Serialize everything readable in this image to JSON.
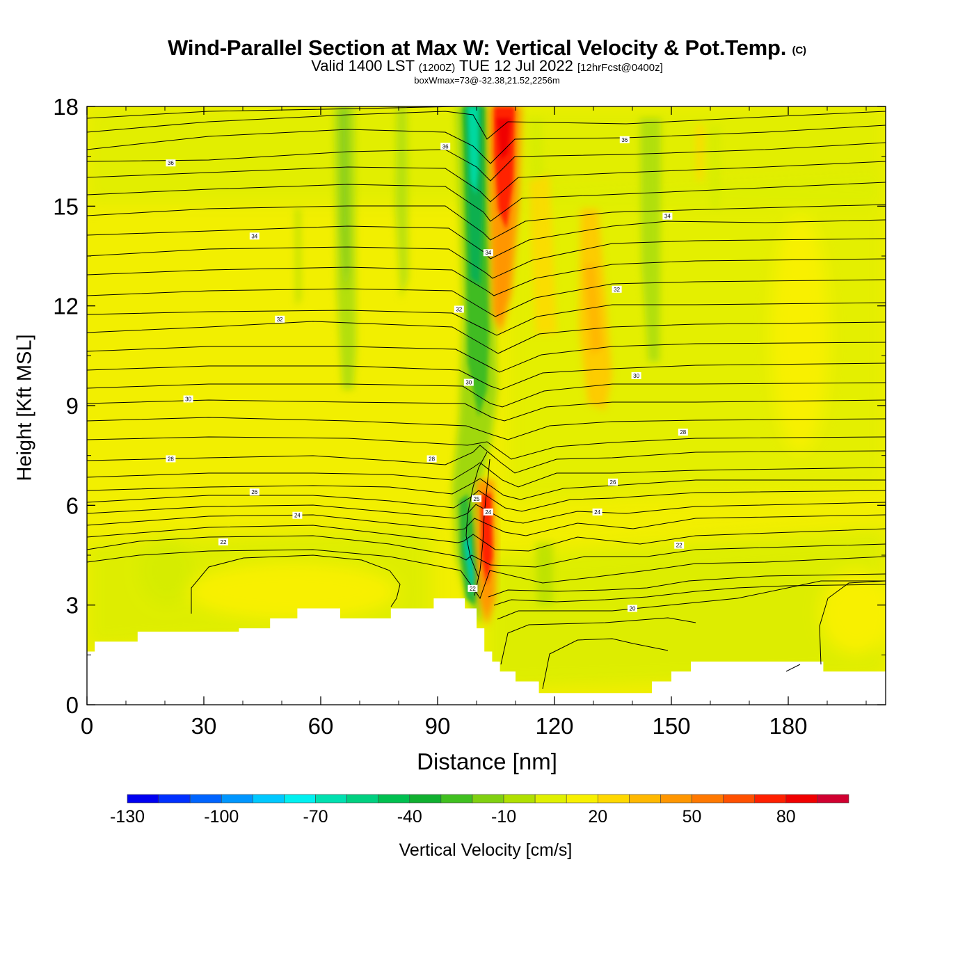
{
  "title": {
    "main": "Wind-Parallel Section at Max W: Vertical Velocity & Pot.Temp.",
    "copyright": "(C)",
    "valid_prefix": "Valid 1400 LST",
    "valid_z": "(1200Z)",
    "valid_date": "TUE 12 Jul 2022",
    "forecast": "[12hrFcst@0400z]",
    "box_info": "boxWmax=73@-32.38,21.52,2256m"
  },
  "chart_data": {
    "type": "heatmap",
    "xlabel": "Distance [nm]",
    "ylabel": "Height [Kft MSL]",
    "xlim": [
      0,
      205
    ],
    "ylim": [
      0,
      18
    ],
    "x_ticks": [
      0,
      30,
      60,
      90,
      120,
      150,
      180
    ],
    "y_ticks": [
      0,
      3,
      6,
      9,
      12,
      15,
      18
    ],
    "colorbar": {
      "title": "Vertical Velocity [cm/s]",
      "levels": [
        -130,
        -120,
        -110,
        -100,
        -90,
        -80,
        -70,
        -60,
        -50,
        -40,
        -30,
        -20,
        -10,
        0,
        10,
        20,
        30,
        40,
        50,
        60,
        70,
        80,
        90,
        100
      ],
      "labels": [
        -130,
        -100,
        -70,
        -40,
        -10,
        20,
        50,
        80
      ],
      "colors": [
        "#0000f0",
        "#0030ff",
        "#0064ff",
        "#0096ff",
        "#00c8ff",
        "#00f0f0",
        "#00e0b0",
        "#00d080",
        "#00c050",
        "#10b030",
        "#40c020",
        "#80d010",
        "#b0e000",
        "#e0f000",
        "#f8f000",
        "#ffd800",
        "#ffb800",
        "#ff9600",
        "#ff7800",
        "#ff5000",
        "#ff2000",
        "#f00000",
        "#d00030"
      ]
    },
    "velocity_features": [
      {
        "kind": "downdraft",
        "x_start": 97,
        "x_end": 101,
        "z_bottom": 2.3,
        "z_top": 18,
        "value": -70
      },
      {
        "kind": "updraft",
        "x_start": 104,
        "x_end": 109,
        "z_bottom": 7.5,
        "z_top": 18,
        "value": 80
      },
      {
        "kind": "updraft",
        "x_start": 100,
        "x_end": 104,
        "z_bottom": 2.5,
        "z_top": 7,
        "value": 80
      },
      {
        "kind": "downdraft",
        "x_start": 64,
        "x_end": 70,
        "z_bottom": 10,
        "z_top": 18,
        "value": -30
      },
      {
        "kind": "downdraft",
        "x_start": 144,
        "x_end": 148,
        "z_bottom": 10.5,
        "z_top": 17.5,
        "value": -25
      },
      {
        "kind": "updraft",
        "x_start": 124,
        "x_end": 136,
        "z_bottom": 9,
        "z_top": 16,
        "value": 25
      }
    ],
    "theta_contours": {
      "units": "C",
      "interval": 1,
      "labeled_values": [
        20,
        22,
        24,
        26,
        28,
        30,
        32,
        34,
        36
      ],
      "label_positions": [
        {
          "value": 36,
          "x": 21.5,
          "z": 16.3
        },
        {
          "value": 36,
          "x": 92,
          "z": 16.8
        },
        {
          "value": 36,
          "x": 138,
          "z": 17.0
        },
        {
          "value": 34,
          "x": 43,
          "z": 14.1
        },
        {
          "value": 34,
          "x": 103,
          "z": 13.6
        },
        {
          "value": 34,
          "x": 149,
          "z": 14.7
        },
        {
          "value": 32,
          "x": 49.5,
          "z": 11.6
        },
        {
          "value": 32,
          "x": 95.5,
          "z": 11.9
        },
        {
          "value": 32,
          "x": 136,
          "z": 12.5
        },
        {
          "value": 30,
          "x": 26,
          "z": 9.2
        },
        {
          "value": 30,
          "x": 98,
          "z": 9.7
        },
        {
          "value": 30,
          "x": 141,
          "z": 9.9
        },
        {
          "value": 28,
          "x": 21.5,
          "z": 7.4
        },
        {
          "value": 28,
          "x": 88.5,
          "z": 7.4
        },
        {
          "value": 28,
          "x": 153,
          "z": 8.2
        },
        {
          "value": 26,
          "x": 43,
          "z": 6.4
        },
        {
          "value": 26,
          "x": 135,
          "z": 6.7
        },
        {
          "value": 25,
          "x": 100,
          "z": 6.2
        },
        {
          "value": 24,
          "x": 103,
          "z": 5.8
        },
        {
          "value": 24,
          "x": 54,
          "z": 5.7
        },
        {
          "value": 24,
          "x": 131,
          "z": 5.8
        },
        {
          "value": 22,
          "x": 35,
          "z": 4.9
        },
        {
          "value": 22,
          "x": 152,
          "z": 4.8
        },
        {
          "value": 22,
          "x": 99,
          "z": 3.5
        },
        {
          "value": 20,
          "x": 140,
          "z": 2.9
        }
      ]
    },
    "terrain": [
      {
        "x": 0,
        "z": 1.6
      },
      {
        "x": 2,
        "z": 1.9
      },
      {
        "x": 13,
        "z": 2.2
      },
      {
        "x": 30,
        "z": 2.2
      },
      {
        "x": 39,
        "z": 2.0
      },
      {
        "x": 39,
        "z": 2.3
      },
      {
        "x": 47,
        "z": 2.6
      },
      {
        "x": 54,
        "z": 2.9
      },
      {
        "x": 65,
        "z": 2.6
      },
      {
        "x": 78,
        "z": 2.9
      },
      {
        "x": 89,
        "z": 3.2
      },
      {
        "x": 97,
        "z": 2.9
      },
      {
        "x": 100,
        "z": 2.3
      },
      {
        "x": 102,
        "z": 1.6
      },
      {
        "x": 104,
        "z": 1.3
      },
      {
        "x": 106,
        "z": 1.0
      },
      {
        "x": 110,
        "z": 0.7
      },
      {
        "x": 116,
        "z": 0.35
      },
      {
        "x": 145,
        "z": 0.7
      },
      {
        "x": 150,
        "z": 1.0
      },
      {
        "x": 155,
        "z": 1.3
      },
      {
        "x": 189,
        "z": 1.0
      },
      {
        "x": 205,
        "z": 1.0
      }
    ]
  }
}
